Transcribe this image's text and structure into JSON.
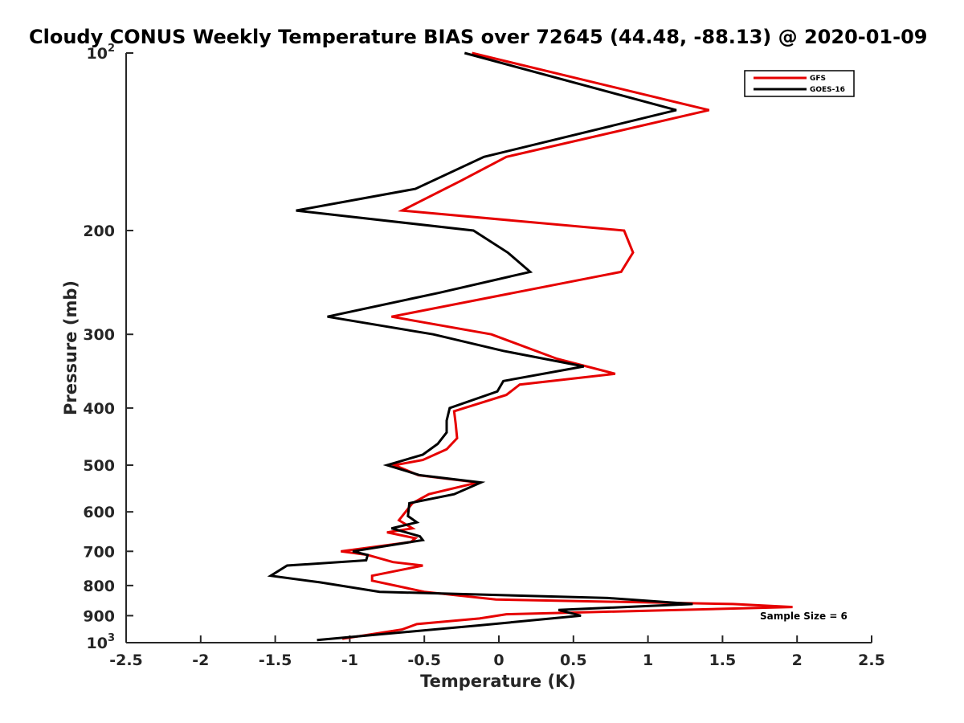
{
  "chart_data": {
    "type": "line",
    "title": "Cloudy CONUS Weekly Temperature BIAS over 72645 (44.48, -88.13) @ 2020-01-09",
    "xlabel": "Temperature (K)",
    "ylabel": "Pressure (mb)",
    "xlim": [
      -2.5,
      2.5
    ],
    "ylim": [
      1000,
      100
    ],
    "yscale": "log",
    "y_reversed": true,
    "x_ticks": [
      -2.5,
      -2,
      -1.5,
      -1,
      -0.5,
      0,
      0.5,
      1,
      1.5,
      2,
      2.5
    ],
    "x_tick_labels": [
      "-2.5",
      "-2",
      "-1.5",
      "-1",
      "-0.5",
      "0",
      "0.5",
      "1",
      "1.5",
      "2",
      "2.5"
    ],
    "y_ticks": [
      100,
      200,
      300,
      400,
      500,
      600,
      700,
      800,
      900,
      1000
    ],
    "y_tick_labels": {
      "plain": [
        "200",
        "300",
        "400",
        "500",
        "600",
        "700",
        "800",
        "900"
      ],
      "p100": {
        "base": "10",
        "exp": "2"
      },
      "p1000": {
        "base": "10",
        "exp": "3"
      }
    },
    "grid": false,
    "legend_position": "top-right",
    "annotation": "Sample Size = 6",
    "series": [
      {
        "name": "GFS",
        "color": "#e60000",
        "points": [
          [
            -0.18,
            100
          ],
          [
            1.41,
            125
          ],
          [
            0.05,
            150
          ],
          [
            -0.26,
            165
          ],
          [
            -0.65,
            185
          ],
          [
            0.84,
            200
          ],
          [
            0.9,
            218
          ],
          [
            0.82,
            235
          ],
          [
            -0.72,
            280
          ],
          [
            -0.05,
            300
          ],
          [
            0.39,
            330
          ],
          [
            0.78,
            350
          ],
          [
            0.14,
            365
          ],
          [
            0.05,
            380
          ],
          [
            -0.3,
            405
          ],
          [
            -0.29,
            425
          ],
          [
            -0.28,
            450
          ],
          [
            -0.35,
            470
          ],
          [
            -0.51,
            490
          ],
          [
            -0.7,
            500
          ],
          [
            -0.54,
            520
          ],
          [
            -0.14,
            535
          ],
          [
            -0.47,
            560
          ],
          [
            -0.58,
            580
          ],
          [
            -0.67,
            620
          ],
          [
            -0.58,
            640
          ],
          [
            -0.75,
            650
          ],
          [
            -0.56,
            665
          ],
          [
            -0.59,
            675
          ],
          [
            -1.06,
            700
          ],
          [
            -0.88,
            710
          ],
          [
            -0.71,
            730
          ],
          [
            -0.51,
            740
          ],
          [
            -0.85,
            770
          ],
          [
            -0.85,
            785
          ],
          [
            -0.5,
            820
          ],
          [
            -0.02,
            845
          ],
          [
            1.57,
            860
          ],
          [
            1.97,
            870
          ],
          [
            0.43,
            890
          ],
          [
            0.05,
            895
          ],
          [
            -0.13,
            910
          ],
          [
            -0.55,
            930
          ],
          [
            -0.65,
            950
          ],
          [
            -1.05,
            985
          ]
        ]
      },
      {
        "name": "GOES-16",
        "color": "#000000",
        "points": [
          [
            -0.23,
            100
          ],
          [
            1.19,
            125
          ],
          [
            -0.1,
            150
          ],
          [
            -0.56,
            170
          ],
          [
            -1.36,
            185
          ],
          [
            -0.17,
            200
          ],
          [
            0.06,
            218
          ],
          [
            0.21,
            235
          ],
          [
            -0.4,
            255
          ],
          [
            -1.15,
            280
          ],
          [
            -0.44,
            300
          ],
          [
            0.03,
            320
          ],
          [
            0.57,
            340
          ],
          [
            0.03,
            360
          ],
          [
            -0.01,
            375
          ],
          [
            -0.33,
            400
          ],
          [
            -0.35,
            420
          ],
          [
            -0.35,
            440
          ],
          [
            -0.41,
            460
          ],
          [
            -0.51,
            480
          ],
          [
            -0.75,
            500
          ],
          [
            -0.53,
            520
          ],
          [
            -0.12,
            535
          ],
          [
            -0.3,
            560
          ],
          [
            -0.6,
            580
          ],
          [
            -0.61,
            610
          ],
          [
            -0.55,
            625
          ],
          [
            -0.72,
            640
          ],
          [
            -0.53,
            660
          ],
          [
            -0.51,
            670
          ],
          [
            -0.98,
            700
          ],
          [
            -0.88,
            710
          ],
          [
            -0.89,
            725
          ],
          [
            -1.42,
            740
          ],
          [
            -1.53,
            770
          ],
          [
            -1.2,
            790
          ],
          [
            -0.8,
            820
          ],
          [
            0.73,
            840
          ],
          [
            1.3,
            860
          ],
          [
            0.4,
            880
          ],
          [
            0.55,
            900
          ],
          [
            -0.14,
            935
          ],
          [
            -1.22,
            990
          ]
        ]
      }
    ]
  }
}
